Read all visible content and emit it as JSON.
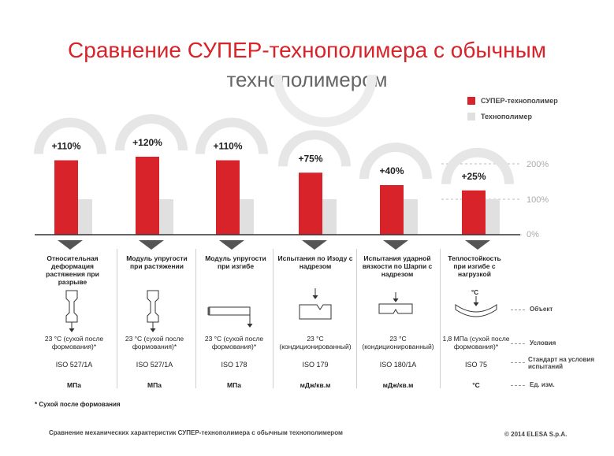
{
  "title": {
    "line1": "Сравнение СУПЕР-технополимера с обычным",
    "line2": "технополимером"
  },
  "chart_data": {
    "type": "bar",
    "categories": [
      "Относительная деформация растяжения при разрыве",
      "Модуль упругости при растяжении",
      "Модуль упругости при изгибе",
      "Испытания по Изоду с надрезом",
      "Испытания ударной вязкости по Шарпи с надрезом",
      "Теплостойкость при изгибе с нагрузкой"
    ],
    "series": [
      {
        "name": "СУПЕР-технополимер",
        "values": [
          210,
          220,
          210,
          175,
          140,
          125
        ],
        "color": "#d8232a"
      },
      {
        "name": "Технополимер",
        "values": [
          100,
          100,
          100,
          100,
          100,
          100
        ],
        "color": "#e0e0e0"
      }
    ],
    "data_labels": [
      "+110%",
      "+120%",
      "+110%",
      "+75%",
      "+40%",
      "+25%"
    ],
    "y_ticks": [
      "0%",
      "100%",
      "200%"
    ],
    "ylim": [
      0,
      240
    ],
    "legend_position": "top-right"
  },
  "table": {
    "categories": [
      "Относительная деформация растяжения при разрыве",
      "Модуль упругости при растяжении",
      "Модуль упругости при изгибе",
      "Испытания по Изоду с надрезом",
      "Испытания ударной вязкости по Шарпи с надрезом",
      "Теплостойкость при изгибе с нагрузкой"
    ],
    "conditions": [
      "23 °C (сухой после формования)*",
      "23 °C (сухой после формования)*",
      "23 °C (сухой после формования)*",
      "23 °C (кондиционированный)",
      "23 °C (кондиционированный)",
      "1,8 МПа (сухой после формования)*"
    ],
    "standards": [
      "ISO 527/1A",
      "ISO 527/1A",
      "ISO 178",
      "ISO 179",
      "ISO 180/1A",
      "ISO 75"
    ],
    "units": [
      "МПа",
      "МПа",
      "МПа",
      "мДж/кв.м",
      "мДж/кв.м",
      "°C"
    ],
    "row_labels": {
      "object": "Объект",
      "conditions": "Условия",
      "standard": "Стандарт на условия испытаний",
      "units": "Ед. изм."
    },
    "icon_label_c": "°C"
  },
  "footnote": "* Сухой после формования",
  "footer": "Сравнение механических характеристик СУПЕР-технополимера с обычным технополимером",
  "copyright": "© 2014 ELESA S.p.A."
}
